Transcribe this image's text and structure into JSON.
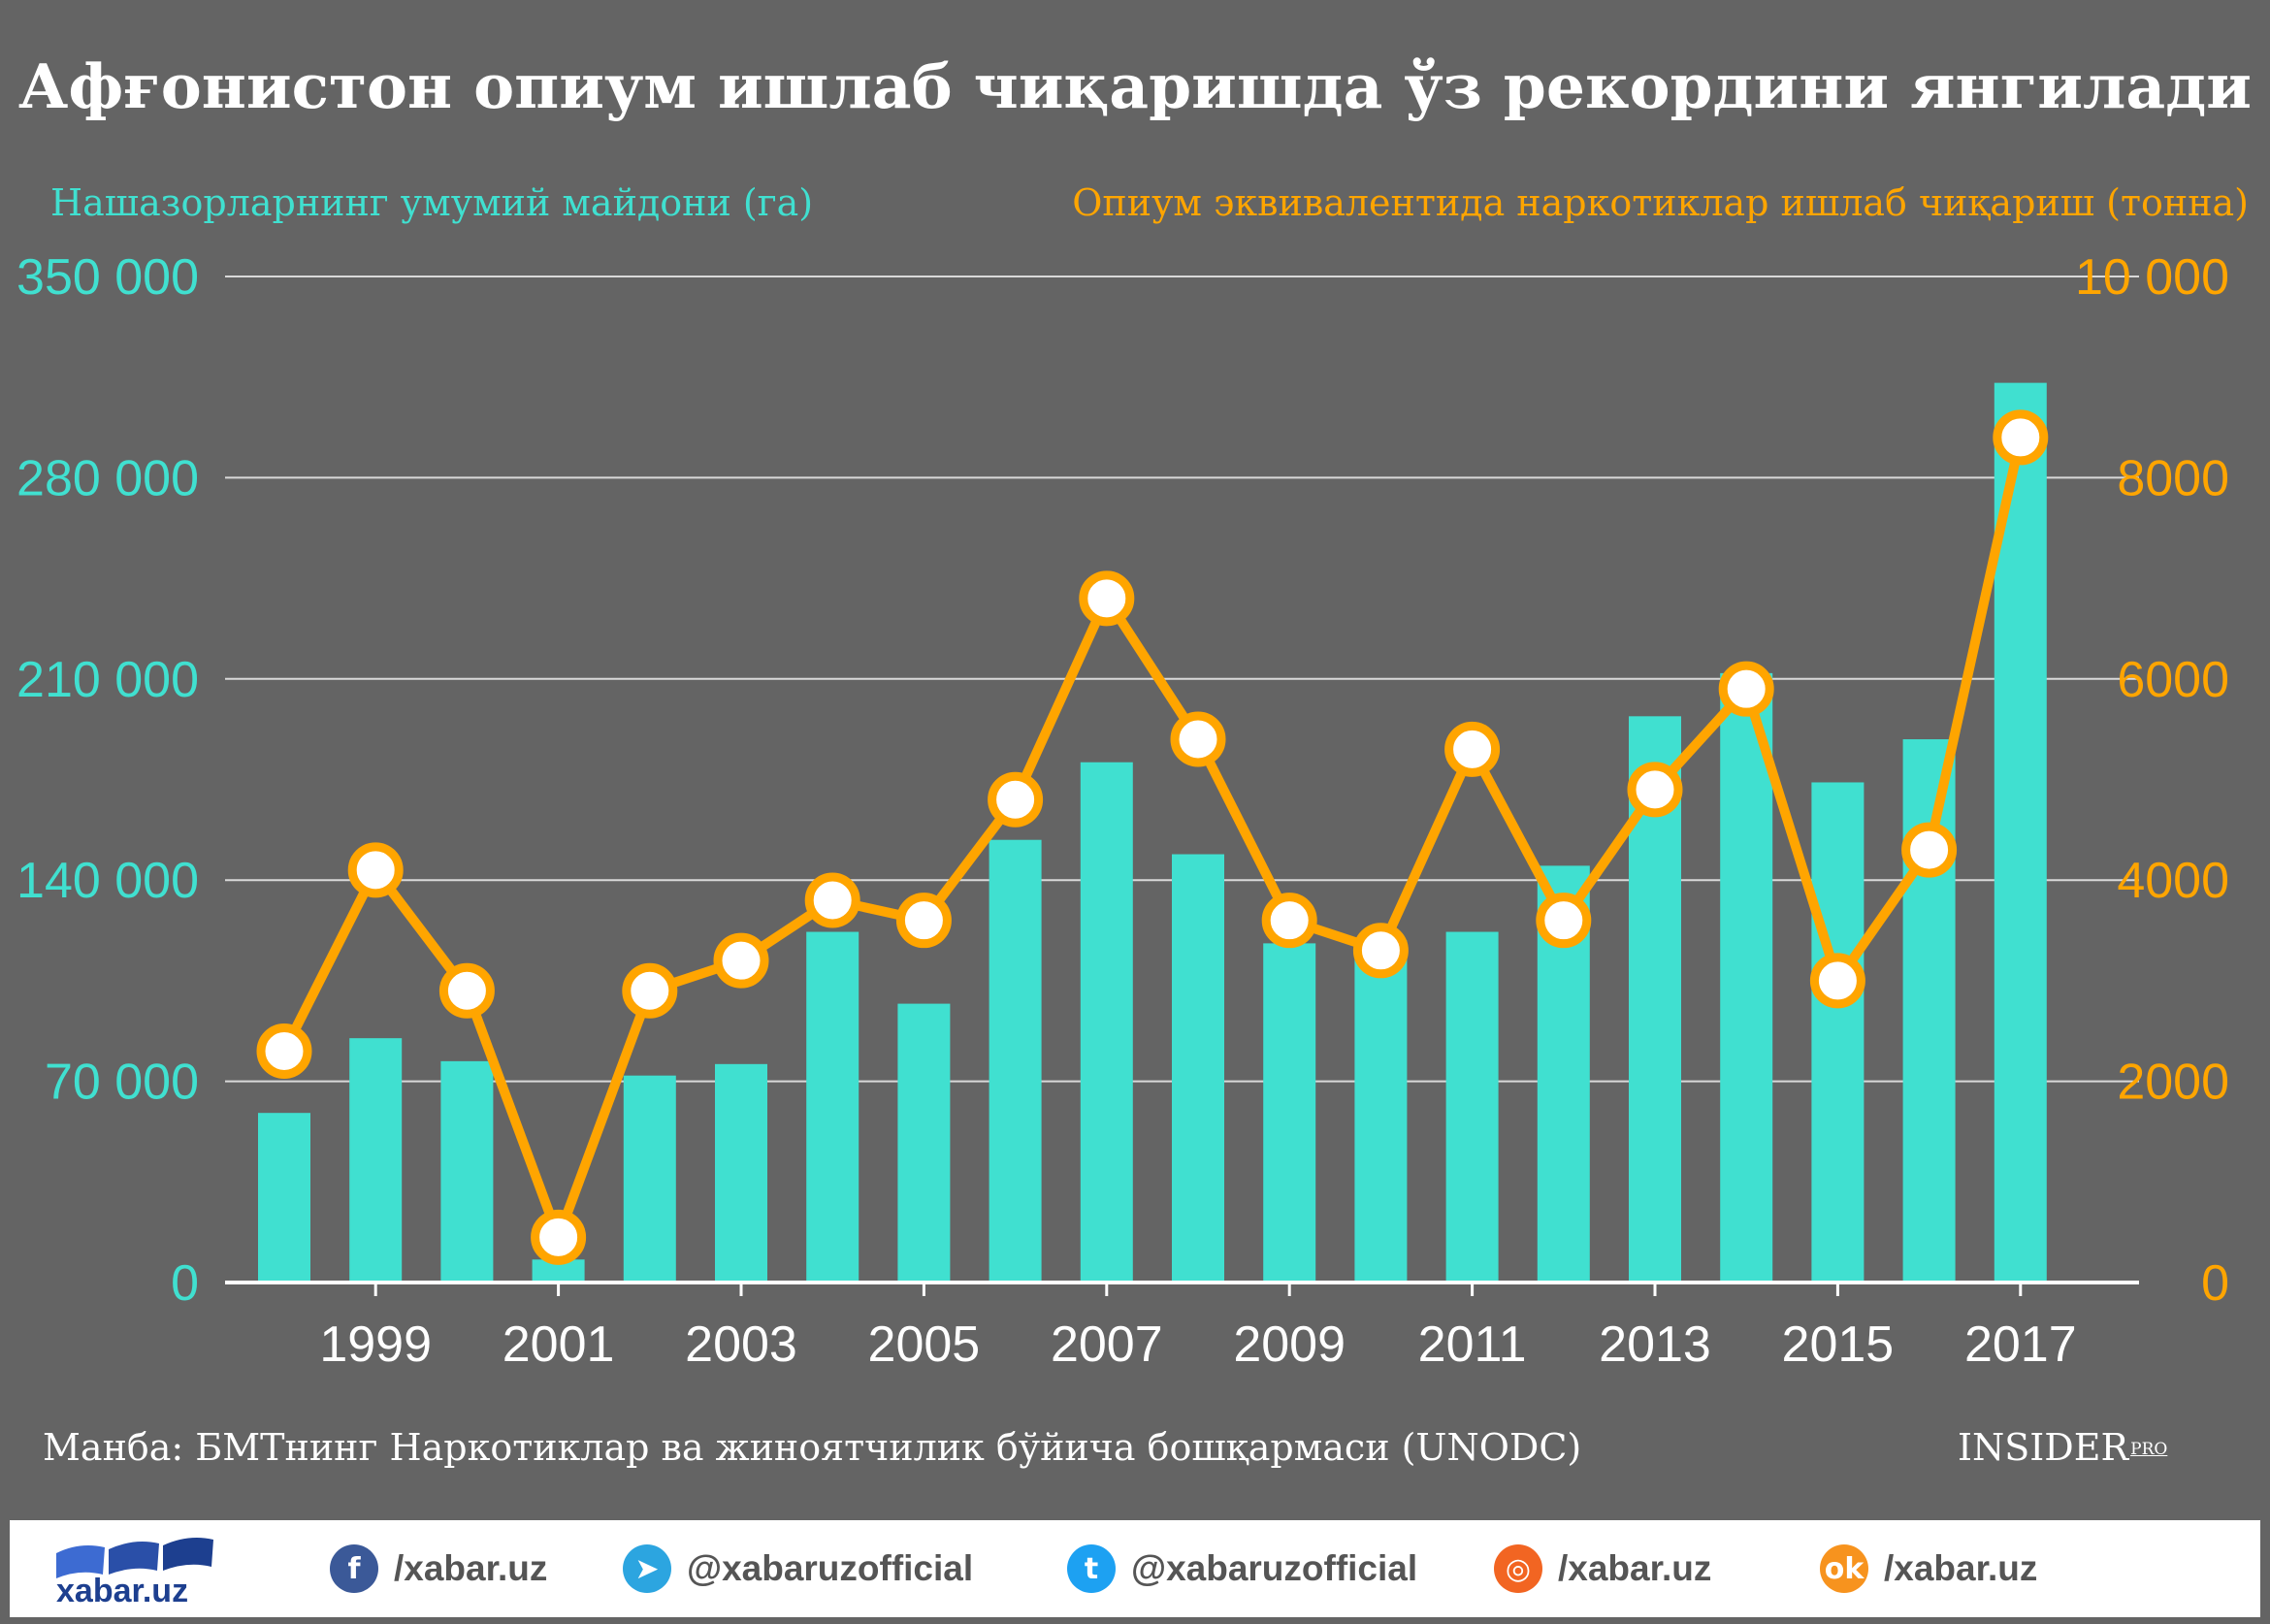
{
  "title": "Афғонистон опиум ишлаб чиқаришда ўз рекордини янгилади",
  "source": "Манба: БМТнинг Наркотиклар ва жиноятчилик бўйича бошқармаси (UNODC)",
  "brand": {
    "name": "INSIDER",
    "suffix": "PRO"
  },
  "colors": {
    "background": "#646464",
    "bars": "#40E0D0",
    "line": "#FFA500",
    "grid": "#d9d9d9"
  },
  "chart_data": {
    "type": "bar",
    "title": "Афғонистон опиум ишлаб чиқаришда ўз рекордини янгилади",
    "categories": [
      "1998",
      "1999",
      "2000",
      "2001",
      "2002",
      "2003",
      "2004",
      "2005",
      "2006",
      "2007",
      "2008",
      "2009",
      "2010",
      "2011",
      "2012",
      "2013",
      "2014",
      "2015",
      "2016",
      "2017"
    ],
    "x_tick_labels": [
      "1999",
      "2001",
      "2003",
      "2005",
      "2007",
      "2009",
      "2011",
      "2013",
      "2015",
      "2017"
    ],
    "series": [
      {
        "name": "Нашазорларнинг умумий майдони (га)",
        "type": "bar",
        "axis": "left",
        "values": [
          59000,
          85000,
          77000,
          8000,
          72000,
          76000,
          122000,
          97000,
          154000,
          181000,
          149000,
          118000,
          119000,
          122000,
          145000,
          197000,
          212000,
          174000,
          189000,
          313000
        ]
      },
      {
        "name": "Опиум эквивалентида наркотиклар ишлаб чиқариш (тонна)",
        "type": "line",
        "axis": "right",
        "values": [
          2300,
          4100,
          2900,
          450,
          2900,
          3200,
          3800,
          3600,
          4800,
          6800,
          5400,
          3600,
          3300,
          5300,
          3600,
          4900,
          5900,
          3000,
          4300,
          8400
        ]
      }
    ],
    "y_left": {
      "label": "Нашазорларнинг умумий майдони (га)",
      "ylim": [
        0,
        350000
      ],
      "ticks": [
        "350 000",
        "280 000",
        "210 000",
        "140 000",
        "70 000",
        "0"
      ]
    },
    "y_right": {
      "label": "Опиум эквивалентида наркотиклар ишлаб чиқариш (тонна)",
      "ylim": [
        0,
        10000
      ],
      "ticks": [
        "10 000",
        "8000",
        "6000",
        "4000",
        "2000",
        "0"
      ]
    },
    "grid": true
  },
  "footer": {
    "logo_text": "xabar.uz",
    "socials": [
      {
        "icon": "facebook-icon",
        "glyph": "f",
        "color": "#3b5998",
        "label": "/xabar.uz"
      },
      {
        "icon": "telegram-icon",
        "glyph": "➤",
        "color": "#2ca5e0",
        "label": "@xabaruzofficial"
      },
      {
        "icon": "twitter-icon",
        "glyph": "t",
        "color": "#1da1f2",
        "label": "@xabaruzofficial"
      },
      {
        "icon": "instagram-icon",
        "glyph": "◎",
        "color": "#f26522",
        "label": "/xabar.uz"
      },
      {
        "icon": "odnoklassniki-icon",
        "glyph": "ok",
        "color": "#f7931e",
        "label": "/xabar.uz"
      }
    ]
  }
}
